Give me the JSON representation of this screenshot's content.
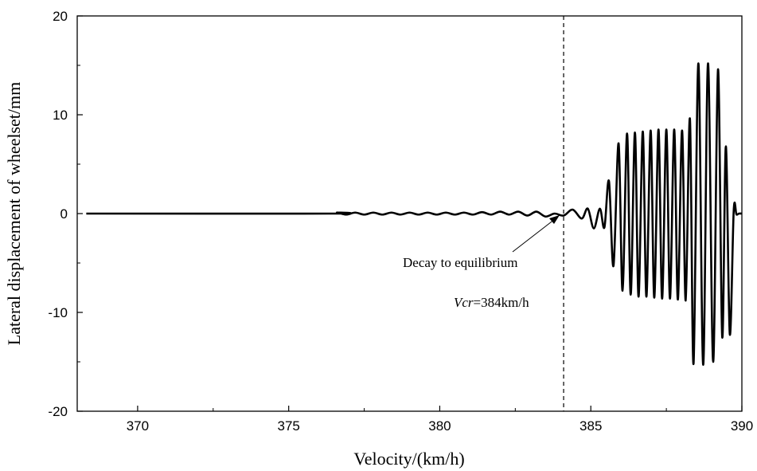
{
  "chart_data": {
    "type": "line",
    "title": "",
    "xlabel": "Velocity/(km/h)",
    "ylabel": "Lateral displacement of wheelset/mm",
    "xlim": [
      368,
      390
    ],
    "ylim": [
      -20,
      20
    ],
    "x_ticks": [
      370,
      375,
      380,
      385,
      390
    ],
    "x_tick_labels": [
      "370",
      "375",
      "380",
      "385",
      "390"
    ],
    "y_ticks": [
      -20,
      -10,
      0,
      10,
      20
    ],
    "y_tick_labels": [
      "-20",
      "-10",
      "0",
      "10",
      "20"
    ],
    "grid": false,
    "legend": "none",
    "critical_velocity": 384.1,
    "annotations": {
      "decay_label": "Decay to equilibrium",
      "vcr_italic": "Vcr",
      "vcr_value": "=384km/h"
    },
    "series": [
      {
        "color": "#000000",
        "description": "near-zero response up to ~384 km/h, then growing oscillation",
        "x": [
          368.3,
          376.4,
          376.6,
          376.9,
          377.2,
          377.5,
          377.8,
          378.1,
          378.4,
          378.7,
          379.0,
          379.3,
          379.6,
          379.9,
          380.2,
          380.5,
          380.8,
          381.1,
          381.4,
          381.7,
          382.0,
          382.3,
          382.6,
          382.9,
          383.2,
          383.5,
          383.8,
          384.1,
          384.4,
          384.7,
          384.9,
          385.1,
          385.3,
          385.45,
          385.6,
          385.75,
          385.92,
          386.05,
          386.2,
          386.32,
          386.46,
          386.58,
          386.72,
          386.84,
          386.98,
          387.1,
          387.24,
          387.36,
          387.5,
          387.62,
          387.76,
          387.88,
          388.02,
          388.14,
          388.28,
          388.4,
          388.56,
          388.72,
          388.88,
          389.05,
          389.21,
          389.35,
          389.47,
          389.6,
          389.73,
          389.82,
          389.9,
          390.0
        ],
        "y": [
          0,
          0,
          0.1,
          -0.1,
          0.1,
          -0.1,
          0.1,
          -0.1,
          0.1,
          -0.1,
          0.1,
          -0.1,
          0.1,
          -0.1,
          0.1,
          -0.1,
          0.1,
          -0.1,
          0.15,
          -0.1,
          0.2,
          -0.1,
          0.2,
          -0.2,
          0.2,
          -0.3,
          0,
          -0.2,
          0.4,
          -0.5,
          0.5,
          -1.5,
          0.5,
          -1.4,
          3.3,
          -5.3,
          7.1,
          -7.8,
          8.1,
          -8.2,
          8.2,
          -8.4,
          8.3,
          -8.4,
          8.4,
          -8.5,
          8.5,
          -8.6,
          8.5,
          -8.6,
          8.5,
          -8.7,
          8.4,
          -8.8,
          9.6,
          -15.2,
          15.2,
          -15.3,
          15.2,
          -15.0,
          14.6,
          -12.5,
          6.8,
          -12.2,
          0.3,
          -0.1,
          0,
          0
        ]
      }
    ]
  }
}
